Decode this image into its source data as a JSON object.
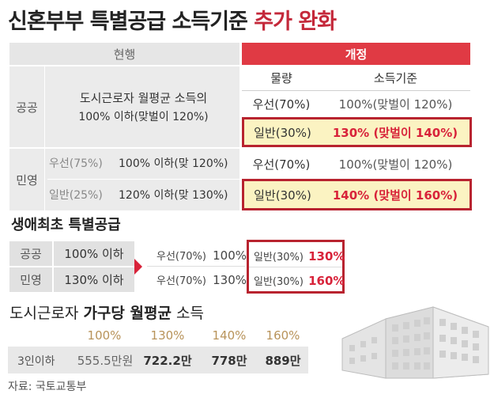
{
  "title": {
    "part1": "신혼부부 특별공급 소득기준",
    "part2": "추가 완화"
  },
  "table1": {
    "header_current": "현행",
    "header_new": "개정",
    "sub_quantity": "물량",
    "sub_income": "소득기준",
    "public_label": "공공",
    "private_label": "민영",
    "public_current_line1": "도시근로자 월평균 소득의",
    "public_current_line2": "100% 이하(맞벌이 120%)",
    "public_new_priority": "우선(70%)",
    "public_new_priority_income": "100%(맞벌이 120%)",
    "public_new_general": "일반(30%)",
    "public_new_general_income": "130% (맞벌이 140%)",
    "private_current_priority": "우선(75%)",
    "private_current_priority_income": "100% 이하(맞 120%)",
    "private_current_general": "일반(25%)",
    "private_current_general_income": "120% 이하(맞 130%)",
    "private_new_priority": "우선(70%)",
    "private_new_priority_income": "100%(맞벌이 120%)",
    "private_new_general": "일반(30%)",
    "private_new_general_income": "140% (맞벌이 160%)"
  },
  "section2": {
    "title": "생애최초 특별공급",
    "public_label": "공공",
    "private_label": "민영",
    "public_current": "100% 이하",
    "private_current": "130% 이하",
    "public_priority": "우선(70%)",
    "public_priority_pct": "100%",
    "private_priority": "우선(70%)",
    "private_priority_pct": "130%",
    "public_general": "일반(30%)",
    "public_general_pct": "130%",
    "private_general": "일반(30%)",
    "private_general_pct": "160%"
  },
  "section3": {
    "title_normal": "도시근로자",
    "title_bold": "가구당 월평균",
    "title_end": "소득",
    "pcts": [
      "100%",
      "130%",
      "140%",
      "160%"
    ],
    "row_label": "3인이하",
    "values": [
      "555.5만원",
      "722.2만",
      "778만",
      "889만"
    ]
  },
  "source": "자료: 국토교통부",
  "colors": {
    "accent_red": "#e03a44",
    "border_red": "#b8232f",
    "highlight_yellow": "#fbf3c2",
    "pct_gold": "#b8935a"
  },
  "icons": [
    "arrow-right-icon",
    "building-icon"
  ]
}
